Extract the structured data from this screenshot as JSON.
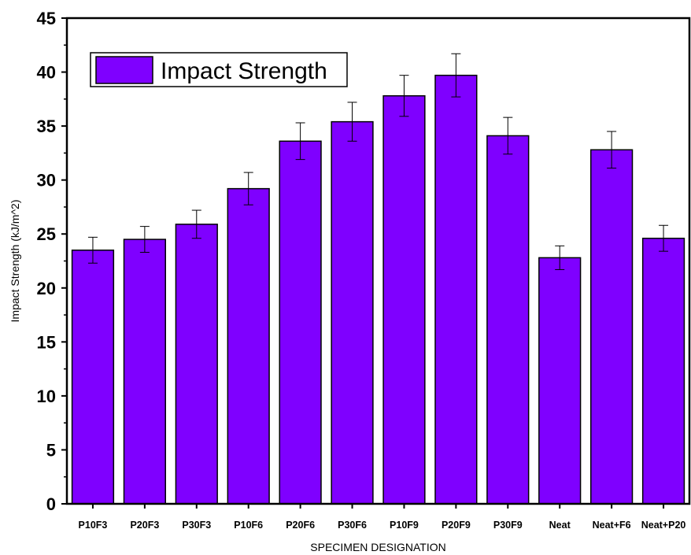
{
  "chart_data": {
    "type": "bar",
    "categories": [
      "P10F3",
      "P20F3",
      "P30F3",
      "P10F6",
      "P20F6",
      "P30F6",
      "P10F9",
      "P20F9",
      "P30F9",
      "Neat",
      "Neat+F6",
      "Neat+P20"
    ],
    "series": [
      {
        "name": "Impact Strength",
        "values": [
          23.5,
          24.5,
          25.9,
          29.2,
          33.6,
          35.4,
          37.8,
          39.7,
          34.1,
          22.8,
          32.8,
          24.6
        ],
        "error": [
          1.2,
          1.2,
          1.3,
          1.5,
          1.7,
          1.8,
          1.9,
          2.0,
          1.7,
          1.1,
          1.7,
          1.2
        ],
        "color": "#7f00ff"
      }
    ],
    "xlabel": "SPECIMEN DESIGNATION",
    "ylabel": "Impact Strength (kJ/m^2)",
    "ylim": [
      0,
      45
    ],
    "yticks": [
      "0",
      "5",
      "10",
      "15",
      "20",
      "25",
      "30",
      "35",
      "40",
      "45"
    ],
    "grid": false,
    "legend": {
      "position": "top-left",
      "entries": [
        "Impact Strength"
      ]
    }
  }
}
